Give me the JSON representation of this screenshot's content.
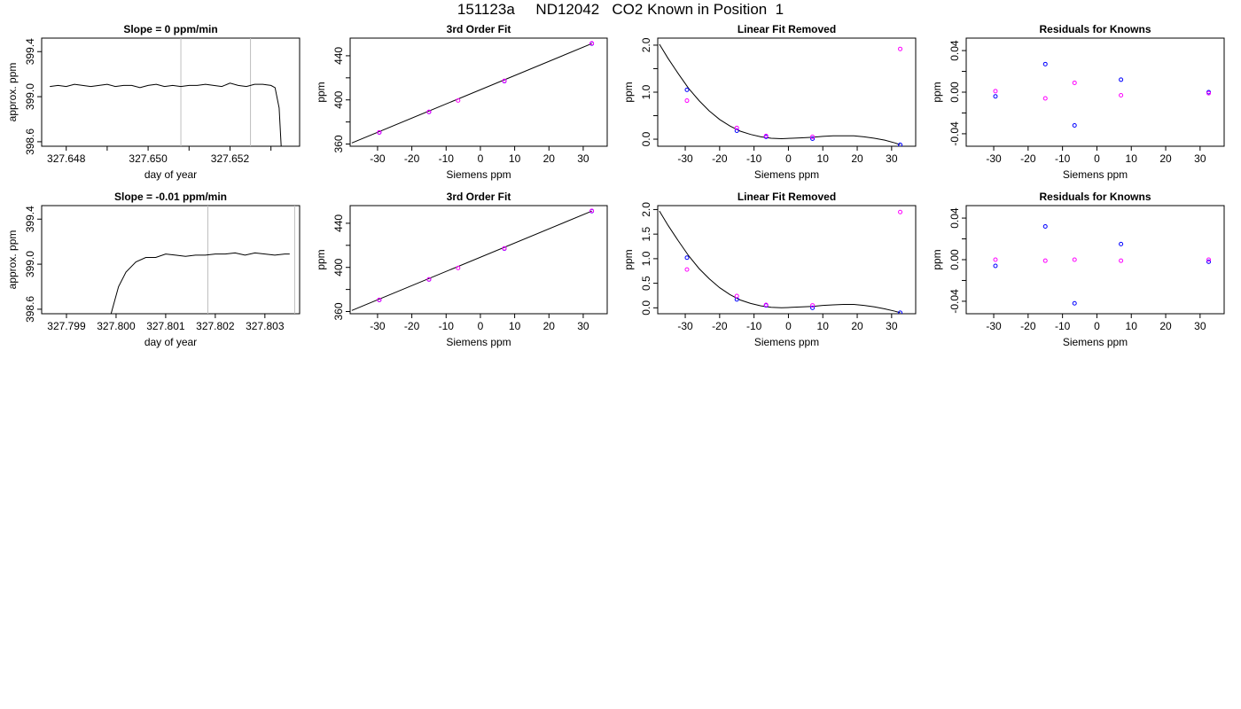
{
  "figure": {
    "title": "151123a     ND12042   CO2 Known in Position  1"
  },
  "chart_data": [
    {
      "type": "line",
      "title": "Slope =  0  ppm/min",
      "xlabel": "day of year",
      "ylabel": "approx. ppm",
      "xlim": [
        327.6474,
        327.6537
      ],
      "ylim": [
        398.56,
        399.52
      ],
      "xticks": [
        327.648,
        327.649,
        327.65,
        327.651,
        327.652,
        327.653
      ],
      "xtick_labels": [
        "327.648",
        "",
        "327.650",
        "",
        "327.652",
        ""
      ],
      "yticks": [
        398.6,
        399.0,
        399.4
      ],
      "ytick_labels": [
        "398.6",
        "399.0",
        "399.4"
      ],
      "vlines": [
        327.6508,
        327.6525
      ],
      "series": [
        {
          "x": [
            327.6476,
            327.6478,
            327.648,
            327.6482,
            327.6484,
            327.6486,
            327.6488,
            327.649,
            327.6492,
            327.6494,
            327.6496,
            327.6498,
            327.65,
            327.6502,
            327.6504,
            327.6506,
            327.6508,
            327.651,
            327.6512,
            327.6514,
            327.6516,
            327.6518,
            327.652,
            327.6522,
            327.6524,
            327.6526,
            327.6528,
            327.653,
            327.6531,
            327.6532,
            327.65325
          ],
          "y": [
            399.09,
            399.1,
            399.09,
            399.11,
            399.1,
            399.09,
            399.1,
            399.11,
            399.09,
            399.1,
            399.1,
            399.08,
            399.1,
            399.11,
            399.09,
            399.1,
            399.09,
            399.1,
            399.1,
            399.11,
            399.1,
            399.09,
            399.12,
            399.1,
            399.09,
            399.11,
            399.11,
            399.1,
            399.08,
            398.9,
            398.56
          ]
        }
      ]
    },
    {
      "type": "scatter",
      "title": "3rd Order Fit",
      "xlabel": "Siemens ppm",
      "ylabel": "ppm",
      "xlim": [
        -38,
        37
      ],
      "ylim": [
        358,
        456
      ],
      "xticks": [
        -30,
        -20,
        -10,
        0,
        10,
        20,
        30
      ],
      "yticks": [
        360,
        400,
        440
      ],
      "yticks_minor": [
        380,
        420
      ],
      "curve": {
        "x": [
          -37.5,
          32.5
        ],
        "y": [
          361,
          451
        ]
      },
      "series": [
        {
          "name": "",
          "color": "#0000ff",
          "x": [
            -29.5,
            -15,
            7,
            32.5
          ],
          "y": [
            370.5,
            389,
            417,
            451
          ]
        },
        {
          "name": "",
          "color": "#ff00ff",
          "x": [
            -29.5,
            -15,
            -6.5,
            7,
            32.5
          ],
          "y": [
            370.6,
            389.1,
            399.5,
            417.2,
            451.3
          ]
        }
      ]
    },
    {
      "type": "scatter",
      "title": "Linear Fit Removed",
      "xlabel": "Siemens ppm",
      "ylabel": "ppm",
      "xlim": [
        -38,
        37
      ],
      "ylim": [
        -0.15,
        2.15
      ],
      "xticks": [
        -30,
        -20,
        -10,
        0,
        10,
        20,
        30
      ],
      "yticks": [
        0.0,
        1.0,
        2.0
      ],
      "ytick_labels": [
        "0.0",
        "1.0",
        "2.0"
      ],
      "yticks_minor": [
        0.5,
        1.5
      ],
      "curve": {
        "x": [
          -37.5,
          -35,
          -32,
          -29,
          -26,
          -23,
          -20,
          -17,
          -14,
          -11,
          -8,
          -5,
          -2,
          1,
          4,
          7,
          10,
          13,
          16,
          19,
          22,
          25,
          28,
          31,
          32.5
        ],
        "y": [
          2.02,
          1.72,
          1.39,
          1.08,
          0.82,
          0.6,
          0.42,
          0.28,
          0.17,
          0.1,
          0.05,
          0.02,
          0.01,
          0.02,
          0.03,
          0.04,
          0.06,
          0.07,
          0.07,
          0.07,
          0.05,
          0.02,
          -0.02,
          -0.08,
          -0.12
        ]
      },
      "series": [
        {
          "name": "",
          "color": "#0000ff",
          "x": [
            -29.5,
            -15,
            -6.5,
            7,
            32.5
          ],
          "y": [
            1.05,
            0.18,
            0.05,
            0.01,
            -0.12
          ]
        },
        {
          "name": "",
          "color": "#ff00ff",
          "x": [
            -29.5,
            -15,
            -6.5,
            7,
            32.5
          ],
          "y": [
            0.82,
            0.24,
            0.07,
            0.05,
            1.92
          ]
        }
      ]
    },
    {
      "type": "scatter",
      "title": "Residuals for Knowns",
      "xlabel": "Siemens ppm",
      "ylabel": "ppm",
      "xlim": [
        -38,
        37
      ],
      "ylim": [
        -0.052,
        0.052
      ],
      "xticks": [
        -30,
        -20,
        -10,
        0,
        10,
        20,
        30
      ],
      "yticks": [
        -0.04,
        0.0,
        0.04
      ],
      "ytick_labels": [
        "-0.04",
        "0.00",
        "0.04"
      ],
      "yticks_minor": [
        -0.02,
        0.02
      ],
      "series": [
        {
          "name": "",
          "color": "#0000ff",
          "x": [
            -29.5,
            -15,
            -6.5,
            7,
            32.5
          ],
          "y": [
            -0.004,
            0.027,
            -0.032,
            0.012,
            0.0
          ]
        },
        {
          "name": "",
          "color": "#ff00ff",
          "x": [
            -29.5,
            -15,
            -6.5,
            7,
            32.5
          ],
          "y": [
            0.001,
            -0.006,
            0.009,
            -0.003,
            -0.001
          ]
        }
      ]
    },
    {
      "type": "line",
      "title": "Slope =  -0.01  ppm/min",
      "xlabel": "day of year",
      "ylabel": "approx. ppm",
      "xlim": [
        327.7985,
        327.8037
      ],
      "ylim": [
        398.56,
        399.52
      ],
      "xticks": [
        327.799,
        327.8,
        327.801,
        327.802,
        327.803
      ],
      "xtick_labels": [
        "327.799",
        "327.800",
        "327.801",
        "327.802",
        "327.803"
      ],
      "yticks": [
        398.6,
        399.0,
        399.4
      ],
      "ytick_labels": [
        "398.6",
        "399.0",
        "399.4"
      ],
      "vlines": [
        327.80185,
        327.8036
      ],
      "series": [
        {
          "x": [
            327.7999,
            327.80005,
            327.8002,
            327.8004,
            327.8006,
            327.8008,
            327.801,
            327.8012,
            327.8014,
            327.8016,
            327.8018,
            327.802,
            327.8022,
            327.8024,
            327.8026,
            327.8028,
            327.803,
            327.8032,
            327.8034,
            327.8035
          ],
          "y": [
            398.56,
            398.8,
            398.93,
            399.02,
            399.06,
            399.06,
            399.09,
            399.08,
            399.07,
            399.08,
            399.08,
            399.09,
            399.09,
            399.1,
            399.08,
            399.1,
            399.09,
            399.08,
            399.09,
            399.09
          ]
        }
      ]
    },
    {
      "type": "scatter",
      "title": "3rd Order Fit",
      "xlabel": "Siemens ppm",
      "ylabel": "ppm",
      "xlim": [
        -38,
        37
      ],
      "ylim": [
        358,
        456
      ],
      "xticks": [
        -30,
        -20,
        -10,
        0,
        10,
        20,
        30
      ],
      "yticks": [
        360,
        400,
        440
      ],
      "yticks_minor": [
        380,
        420
      ],
      "curve": {
        "x": [
          -37.5,
          32.5
        ],
        "y": [
          361,
          451
        ]
      },
      "series": [
        {
          "name": "",
          "color": "#0000ff",
          "x": [
            -29.5,
            -15,
            7,
            32.5
          ],
          "y": [
            370.5,
            389,
            417,
            451
          ]
        },
        {
          "name": "",
          "color": "#ff00ff",
          "x": [
            -29.5,
            -15,
            -6.5,
            7,
            32.5
          ],
          "y": [
            370.6,
            389.1,
            399.5,
            417.2,
            451.3
          ]
        }
      ]
    },
    {
      "type": "scatter",
      "title": "Linear Fit Removed",
      "xlabel": "Siemens ppm",
      "ylabel": "ppm",
      "xlim": [
        -38,
        37
      ],
      "ylim": [
        -0.12,
        2.08
      ],
      "xticks": [
        -30,
        -20,
        -10,
        0,
        10,
        20,
        30
      ],
      "yticks": [
        0.0,
        0.5,
        1.0,
        1.5,
        2.0
      ],
      "ytick_labels": [
        "0.0",
        "0.5",
        "1.0",
        "1.5",
        "2.0"
      ],
      "curve": {
        "x": [
          -37.5,
          -35,
          -32,
          -29,
          -26,
          -23,
          -20,
          -17,
          -14,
          -11,
          -8,
          -5,
          -2,
          1,
          4,
          7,
          10,
          13,
          16,
          19,
          22,
          25,
          28,
          31,
          32.5
        ],
        "y": [
          1.97,
          1.68,
          1.36,
          1.06,
          0.8,
          0.59,
          0.41,
          0.27,
          0.16,
          0.09,
          0.04,
          0.01,
          0.0,
          0.01,
          0.02,
          0.03,
          0.05,
          0.06,
          0.07,
          0.07,
          0.05,
          0.02,
          -0.02,
          -0.07,
          -0.1
        ]
      },
      "series": [
        {
          "name": "",
          "color": "#0000ff",
          "x": [
            -29.5,
            -15,
            -6.5,
            7,
            32.5
          ],
          "y": [
            1.02,
            0.17,
            0.05,
            0.0,
            -0.1
          ]
        },
        {
          "name": "",
          "color": "#ff00ff",
          "x": [
            -29.5,
            -15,
            -6.5,
            7,
            32.5
          ],
          "y": [
            0.78,
            0.24,
            0.06,
            0.05,
            1.95
          ]
        }
      ]
    },
    {
      "type": "scatter",
      "title": "Residuals for Knowns",
      "xlabel": "Siemens ppm",
      "ylabel": "ppm",
      "xlim": [
        -38,
        37
      ],
      "ylim": [
        -0.052,
        0.052
      ],
      "xticks": [
        -30,
        -20,
        -10,
        0,
        10,
        20,
        30
      ],
      "yticks": [
        -0.04,
        0.0,
        0.04
      ],
      "ytick_labels": [
        "-0.04",
        "0.00",
        "0.04"
      ],
      "yticks_minor": [
        -0.02,
        0.02
      ],
      "series": [
        {
          "name": "",
          "color": "#0000ff",
          "x": [
            -29.5,
            -15,
            -6.5,
            7,
            32.5
          ],
          "y": [
            -0.006,
            0.032,
            -0.042,
            0.015,
            -0.002
          ]
        },
        {
          "name": "",
          "color": "#ff00ff",
          "x": [
            -29.5,
            -15,
            -6.5,
            7,
            32.5
          ],
          "y": [
            0.0,
            -0.001,
            0.0,
            -0.001,
            0.0
          ]
        }
      ]
    }
  ]
}
